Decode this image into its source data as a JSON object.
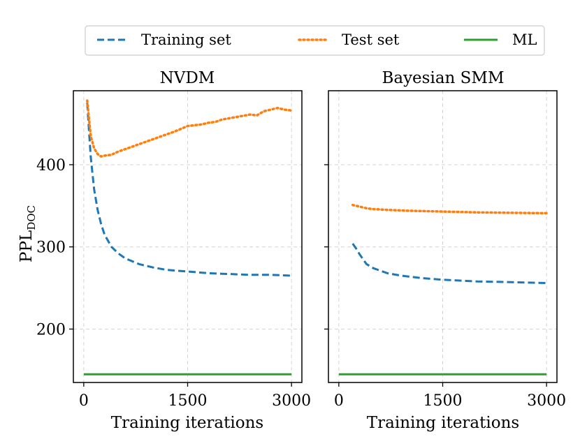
{
  "legend": {
    "placement": "top-center",
    "entries": [
      {
        "label": "Training set",
        "color": "#1f77b4",
        "style": "dashed"
      },
      {
        "label": "Test set",
        "color": "#ff7f0e",
        "style": "dotted"
      },
      {
        "label": "ML",
        "color": "#2ca02c",
        "style": "solid"
      }
    ]
  },
  "shared_y": {
    "label_main": "PPL",
    "label_sub": "DOC",
    "ylim": [
      135,
      490
    ],
    "yticks": [
      200,
      300,
      400
    ]
  },
  "chart_data": [
    {
      "type": "line",
      "title": "NVDM",
      "xlabel": "Training iterations",
      "ylabel": "PPL_DOC",
      "xlim": [
        -150,
        3150
      ],
      "ylim": [
        135,
        490
      ],
      "xticks": [
        0,
        1500,
        3000
      ],
      "grid": true,
      "series": [
        {
          "name": "Training set",
          "color": "#1f77b4",
          "style": "dashed",
          "x": [
            50,
            100,
            150,
            200,
            250,
            300,
            400,
            500,
            600,
            800,
            1000,
            1200,
            1500,
            1800,
            2100,
            2400,
            2700,
            3000
          ],
          "y": [
            475,
            410,
            370,
            345,
            328,
            315,
            300,
            292,
            286,
            279,
            275,
            272,
            270,
            268,
            267,
            266,
            266,
            265
          ]
        },
        {
          "name": "Test set",
          "color": "#ff7f0e",
          "style": "dotted",
          "x": [
            50,
            100,
            150,
            200,
            250,
            300,
            400,
            500,
            700,
            900,
            1100,
            1300,
            1500,
            1700,
            1800,
            1900,
            2000,
            2200,
            2400,
            2500,
            2600,
            2700,
            2800,
            2900,
            3000
          ],
          "y": [
            478,
            435,
            420,
            413,
            410,
            411,
            412,
            416,
            422,
            428,
            434,
            440,
            447,
            449,
            451,
            452,
            455,
            458,
            461,
            460,
            465,
            467,
            469,
            467,
            466
          ]
        },
        {
          "name": "ML",
          "color": "#2ca02c",
          "style": "solid",
          "x": [
            0,
            3000
          ],
          "y": [
            145,
            145
          ]
        }
      ]
    },
    {
      "type": "line",
      "title": "Bayesian SMM",
      "xlabel": "Training iterations",
      "ylabel": "",
      "xlim": [
        -150,
        3150
      ],
      "ylim": [
        135,
        490
      ],
      "xticks": [
        0,
        1500,
        3000
      ],
      "grid": true,
      "series": [
        {
          "name": "Training set",
          "color": "#1f77b4",
          "style": "dashed",
          "x": [
            200,
            250,
            300,
            350,
            400,
            500,
            700,
            900,
            1200,
            1500,
            2000,
            2500,
            3000
          ],
          "y": [
            304,
            298,
            291,
            285,
            279,
            274,
            268,
            265,
            262,
            260,
            258,
            257,
            256
          ]
        },
        {
          "name": "Test set",
          "color": "#ff7f0e",
          "style": "dotted",
          "x": [
            200,
            300,
            400,
            500,
            700,
            1000,
            1500,
            2000,
            2500,
            3000
          ],
          "y": [
            351,
            349,
            347,
            346,
            345,
            344,
            343,
            342,
            341.5,
            341
          ]
        },
        {
          "name": "ML",
          "color": "#2ca02c",
          "style": "solid",
          "x": [
            0,
            3000
          ],
          "y": [
            145,
            145
          ]
        }
      ]
    }
  ]
}
